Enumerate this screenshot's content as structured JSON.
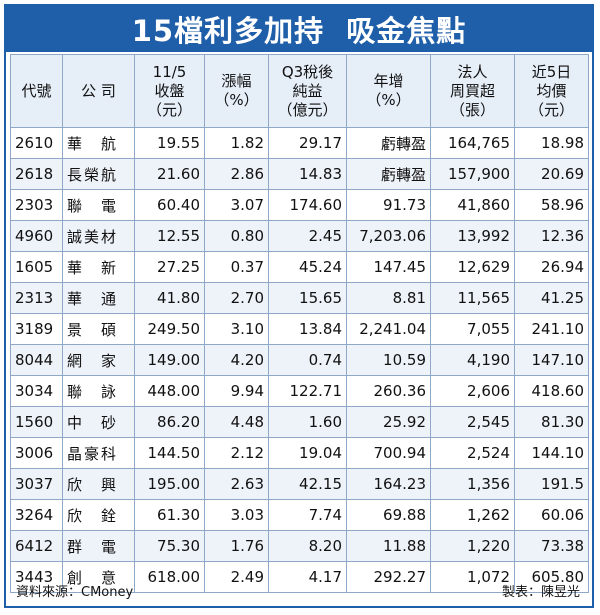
{
  "title": "15檔利多加持  吸金焦點",
  "headers": [
    [
      "代號"
    ],
    [
      "公  司"
    ],
    [
      "11/5",
      "收盤",
      "（元）"
    ],
    [
      "漲幅",
      "（%）"
    ],
    [
      "Q3稅後",
      "純益",
      "（億元）"
    ],
    [
      "年增",
      "（%）"
    ],
    [
      "法人",
      "周買超",
      "（張）"
    ],
    [
      "近5日",
      "均價",
      "（元）"
    ]
  ],
  "rows": [
    [
      "2610",
      "華　航",
      "19.55",
      "1.82",
      "29.17",
      "虧轉盈",
      "164,765",
      "18.98"
    ],
    [
      "2618",
      "長榮航",
      "21.60",
      "2.86",
      "14.83",
      "虧轉盈",
      "157,900",
      "20.69"
    ],
    [
      "2303",
      "聯　電",
      "60.40",
      "3.07",
      "174.60",
      "91.73",
      "41,860",
      "58.96"
    ],
    [
      "4960",
      "誠美材",
      "12.55",
      "0.80",
      "2.45",
      "7,203.06",
      "13,992",
      "12.36"
    ],
    [
      "1605",
      "華　新",
      "27.25",
      "0.37",
      "45.24",
      "147.45",
      "12,629",
      "26.94"
    ],
    [
      "2313",
      "華　通",
      "41.80",
      "2.70",
      "15.65",
      "8.81",
      "11,565",
      "41.25"
    ],
    [
      "3189",
      "景　碩",
      "249.50",
      "3.10",
      "13.84",
      "2,241.04",
      "7,055",
      "241.10"
    ],
    [
      "8044",
      "網　家",
      "149.00",
      "4.20",
      "0.74",
      "10.59",
      "4,190",
      "147.10"
    ],
    [
      "3034",
      "聯　詠",
      "448.00",
      "9.94",
      "122.71",
      "260.36",
      "2,606",
      "418.60"
    ],
    [
      "1560",
      "中　砂",
      "86.20",
      "4.48",
      "1.60",
      "25.92",
      "2,545",
      "81.30"
    ],
    [
      "3006",
      "晶豪科",
      "144.50",
      "2.12",
      "19.04",
      "700.94",
      "2,524",
      "144.10"
    ],
    [
      "3037",
      "欣　興",
      "195.00",
      "2.63",
      "42.15",
      "164.23",
      "1,356",
      "191.5"
    ],
    [
      "3264",
      "欣　銓",
      "61.30",
      "3.03",
      "7.74",
      "69.88",
      "1,262",
      "60.06"
    ],
    [
      "6412",
      "群　電",
      "75.30",
      "1.76",
      "8.20",
      "11.88",
      "1,220",
      "73.38"
    ],
    [
      "3443",
      "創　意",
      "618.00",
      "2.49",
      "4.17",
      "292.27",
      "1,072",
      "605.80"
    ]
  ],
  "footer": {
    "source": "資料來源：CMoney",
    "author": "製表：陳昱光"
  },
  "colors": {
    "title_bg": "#1f5ea8",
    "title_text": "#ffffff",
    "border": "#8fa8c8"
  }
}
